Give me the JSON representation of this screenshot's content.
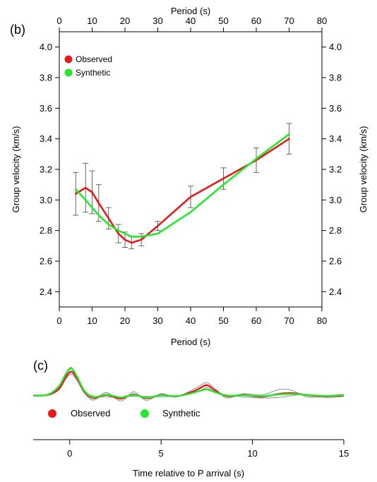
{
  "chart_data": [
    {
      "panel": "(b)",
      "type": "line",
      "xlabel": "Period (s)",
      "ylabel": "Group velocity (km/s)",
      "x_ticks": [
        0,
        10,
        20,
        30,
        40,
        50,
        60,
        70,
        80
      ],
      "y_ticks": [
        2.4,
        2.6,
        2.8,
        3.0,
        3.2,
        3.4,
        3.6,
        3.8,
        4.0
      ],
      "y_tick_labels": [
        "2.4",
        "2.6",
        "2.8",
        "3.0",
        "3.2",
        "3.4",
        "3.6",
        "3.8",
        "4.0"
      ],
      "xlim": [
        0,
        80
      ],
      "ylim": [
        2.3,
        4.1
      ],
      "grid": false,
      "legend_position": "top-left",
      "series": [
        {
          "name": "Observed",
          "color": "#e8191b",
          "x": [
            5,
            8,
            10,
            12,
            15,
            18,
            20,
            22,
            25,
            30,
            40,
            50,
            60,
            70
          ],
          "y": [
            3.04,
            3.08,
            3.05,
            2.98,
            2.88,
            2.78,
            2.74,
            2.72,
            2.74,
            2.83,
            3.02,
            3.14,
            3.26,
            3.4
          ],
          "error": [
            0.14,
            0.16,
            0.14,
            0.12,
            0.07,
            0.06,
            0.05,
            0.04,
            0.04,
            0.03,
            0.07,
            0.07,
            0.08,
            0.1
          ]
        },
        {
          "name": "Synthetic",
          "color": "#24e82c",
          "x": [
            5,
            8,
            10,
            12,
            15,
            18,
            20,
            22,
            25,
            30,
            40,
            50,
            60,
            70
          ],
          "y": [
            3.07,
            3.0,
            2.95,
            2.9,
            2.84,
            2.8,
            2.78,
            2.76,
            2.76,
            2.78,
            2.92,
            3.1,
            3.27,
            3.43
          ]
        }
      ]
    },
    {
      "panel": "(c)",
      "type": "line",
      "xlabel": "Time relative to P arrival (s)",
      "x_ticks": [
        0,
        5,
        10,
        15
      ],
      "xlim": [
        -2,
        15
      ],
      "ylim": [
        -0.45,
        1.05
      ],
      "grid": false,
      "legend_position": "bottom-left",
      "series": [
        {
          "name": "Observed",
          "color": "#e8191b",
          "x": [
            -2,
            -1.2,
            -0.6,
            -0.2,
            0.1,
            0.4,
            0.8,
            1.3,
            2,
            2.8,
            3.5,
            4.2,
            5,
            5.8,
            6.5,
            7,
            7.5,
            8,
            8.6,
            9.5,
            10.5,
            11.5,
            12.2,
            13,
            14,
            15
          ],
          "y": [
            0,
            0.02,
            0.22,
            0.62,
            0.78,
            0.55,
            0.12,
            -0.08,
            0.02,
            -0.1,
            0.04,
            -0.09,
            0.02,
            -0.03,
            0.08,
            0.2,
            0.34,
            0.15,
            -0.02,
            0.02,
            -0.04,
            0.06,
            0.08,
            0.01,
            -0.02,
            0.01
          ]
        },
        {
          "name": "Synthetic",
          "color": "#24e82c",
          "x": [
            -2,
            -1.2,
            -0.6,
            -0.2,
            0.1,
            0.4,
            0.8,
            1.3,
            2,
            2.8,
            3.5,
            4.2,
            5,
            5.8,
            6.5,
            7,
            7.5,
            8,
            8.6,
            9.5,
            10.5,
            11.5,
            12.2,
            13,
            14,
            15
          ],
          "y": [
            0,
            0.03,
            0.3,
            0.72,
            0.88,
            0.62,
            0.16,
            -0.05,
            0.03,
            -0.06,
            0.02,
            -0.07,
            0.01,
            -0.02,
            0.05,
            0.13,
            0.2,
            0.1,
            0.0,
            0.01,
            -0.02,
            0.04,
            0.05,
            0.02,
            -0.01,
            0.02
          ]
        },
        {
          "name": "",
          "color": "#909090",
          "x": [
            -2,
            -1.2,
            -0.6,
            -0.2,
            0.1,
            0.4,
            0.8,
            1.3,
            2,
            2.8,
            3.5,
            4.2,
            5,
            5.8,
            6.5,
            7,
            7.5,
            8,
            8.6,
            9.5,
            10.5,
            11.5,
            12.2,
            13,
            14,
            15
          ],
          "y": [
            0,
            0.03,
            0.28,
            0.74,
            0.92,
            0.6,
            0.1,
            -0.15,
            0.1,
            -0.18,
            0.12,
            -0.16,
            0.06,
            -0.05,
            0.12,
            0.28,
            0.42,
            0.2,
            -0.08,
            0.06,
            0.02,
            0.2,
            0.16,
            -0.05,
            -0.03,
            -0.02
          ]
        },
        {
          "name": "",
          "color": "#909090",
          "x": [
            -2,
            -1.2,
            -0.6,
            -0.2,
            0.1,
            0.4,
            0.8,
            1.3,
            2,
            2.8,
            3.5,
            4.2,
            5,
            5.8,
            6.5,
            7,
            7.5,
            8,
            8.6,
            9.5,
            10.5,
            11.5,
            12.2,
            13,
            14,
            15
          ],
          "y": [
            0,
            0.01,
            0.18,
            0.55,
            0.7,
            0.5,
            0.14,
            -0.02,
            -0.04,
            -0.05,
            -0.02,
            -0.03,
            -0.04,
            -0.02,
            0.04,
            0.12,
            0.26,
            0.1,
            0.02,
            -0.04,
            -0.08,
            -0.06,
            0.0,
            0.04,
            -0.06,
            -0.03
          ]
        }
      ]
    }
  ]
}
